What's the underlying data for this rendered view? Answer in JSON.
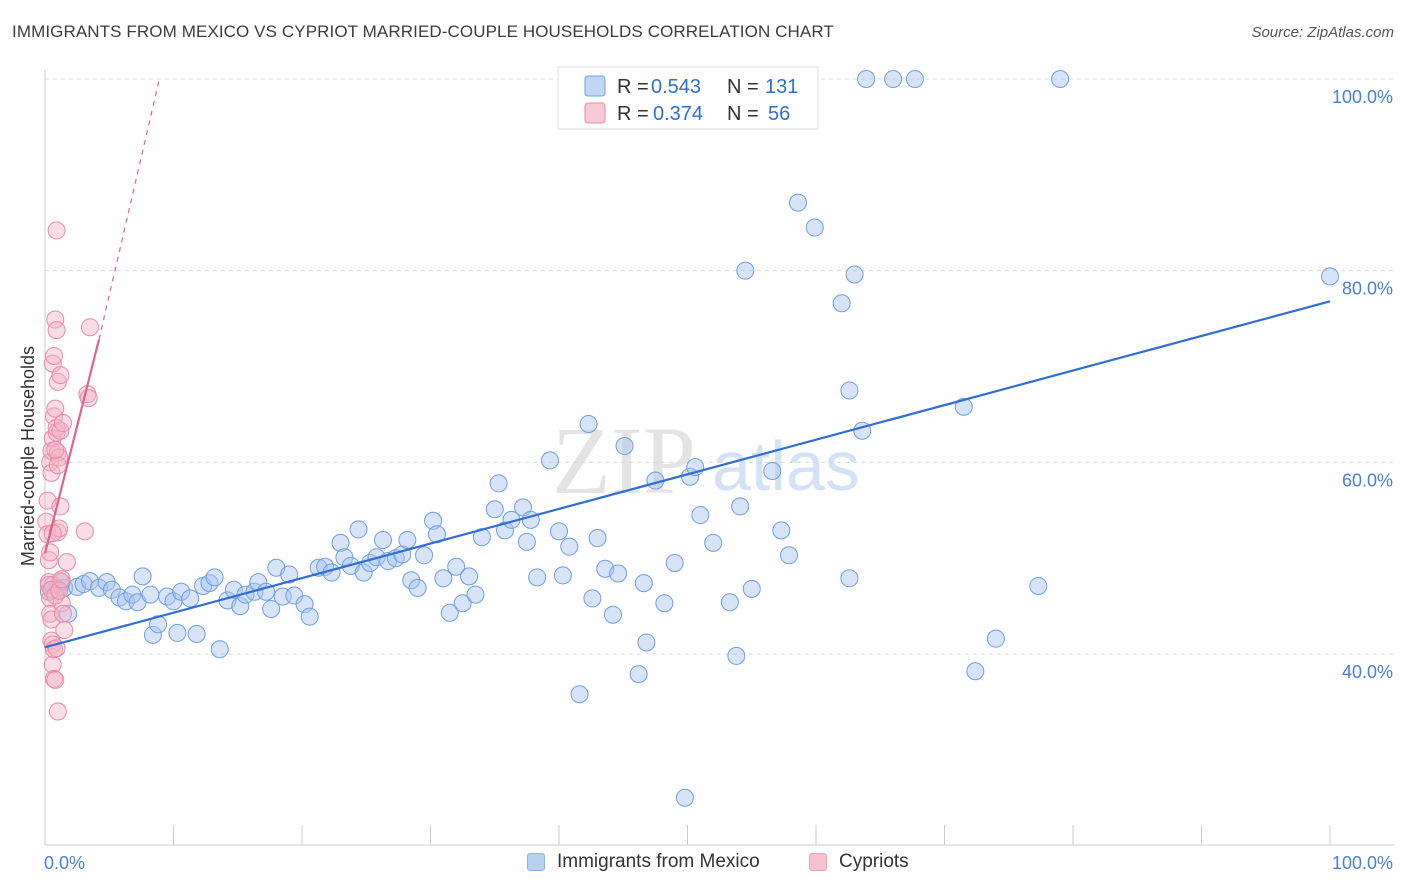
{
  "title": "IMMIGRANTS FROM MEXICO VS CYPRIOT MARRIED-COUPLE HOUSEHOLDS CORRELATION CHART",
  "source": "Source: ZipAtlas.com",
  "watermark": {
    "zip": "ZIP",
    "atlas": "atlas"
  },
  "colors": {
    "blue": "#a7c4ef",
    "blue_stroke": "#6f9ee3",
    "blue_line": "#2f6fd0",
    "pink": "#f5b4c8",
    "pink_stroke": "#ea8aa8",
    "pink_line": "#e0628e",
    "tick_label": "#4a7fd1",
    "grid": "#dadada"
  },
  "legend": {
    "r_label": "R =",
    "n_label": "N =",
    "rows": [
      {
        "r": "0.543",
        "n": "131",
        "series": "blue"
      },
      {
        "r": "0.374",
        "n": "56",
        "series": "pink"
      }
    ]
  },
  "bottom_legend": [
    {
      "label": "Immigrants from Mexico",
      "series": "blue"
    },
    {
      "label": "Cypriots",
      "series": "pink"
    }
  ],
  "chart_data": {
    "type": "scatter",
    "ylabel": "Married-couple Households",
    "xlim": [
      0,
      100
    ],
    "ylim": [
      20,
      102
    ],
    "x_tick_labels": [
      {
        "x": 0,
        "label": "0.0%"
      },
      {
        "x": 100,
        "label": "100.0%"
      }
    ],
    "y_ticks": [
      {
        "y": 40,
        "label": "40.0%"
      },
      {
        "y": 60,
        "label": "60.0%"
      },
      {
        "y": 80,
        "label": "80.0%"
      },
      {
        "y": 100,
        "label": "100.0%"
      }
    ],
    "grid": true,
    "legend_position": "top-center",
    "series": [
      {
        "name": "Immigrants from Mexico",
        "color": "blue",
        "trend": {
          "x": [
            0,
            100
          ],
          "y": [
            40.7,
            76.8
          ],
          "dashed_extension": false
        },
        "points": [
          [
            0.3,
            46.5
          ],
          [
            0.6,
            47.2
          ],
          [
            1.0,
            46.8
          ],
          [
            1.3,
            47.5
          ],
          [
            1.5,
            46.9
          ],
          [
            1.8,
            44.2
          ],
          [
            2.5,
            47.0
          ],
          [
            3.0,
            47.3
          ],
          [
            3.5,
            47.6
          ],
          [
            4.2,
            46.9
          ],
          [
            4.8,
            47.5
          ],
          [
            5.2,
            46.7
          ],
          [
            5.8,
            45.9
          ],
          [
            6.3,
            45.5
          ],
          [
            6.8,
            46.2
          ],
          [
            7.2,
            45.4
          ],
          [
            7.6,
            48.1
          ],
          [
            8.2,
            46.2
          ],
          [
            8.4,
            42.0
          ],
          [
            8.8,
            43.1
          ],
          [
            9.5,
            46.0
          ],
          [
            10.0,
            45.5
          ],
          [
            10.3,
            42.2
          ],
          [
            10.6,
            46.5
          ],
          [
            11.3,
            45.8
          ],
          [
            11.8,
            42.1
          ],
          [
            12.3,
            47.1
          ],
          [
            12.8,
            47.4
          ],
          [
            13.2,
            48.0
          ],
          [
            13.6,
            40.5
          ],
          [
            14.2,
            45.6
          ],
          [
            14.7,
            46.7
          ],
          [
            15.2,
            45.0
          ],
          [
            15.6,
            46.2
          ],
          [
            16.3,
            46.5
          ],
          [
            16.6,
            47.5
          ],
          [
            17.2,
            46.5
          ],
          [
            17.6,
            44.7
          ],
          [
            18.0,
            49.0
          ],
          [
            18.5,
            46.0
          ],
          [
            19.0,
            48.3
          ],
          [
            19.4,
            46.1
          ],
          [
            20.2,
            45.2
          ],
          [
            20.6,
            43.9
          ],
          [
            21.3,
            49.0
          ],
          [
            21.8,
            49.1
          ],
          [
            22.3,
            48.5
          ],
          [
            23.0,
            51.6
          ],
          [
            23.3,
            50.1
          ],
          [
            23.8,
            49.2
          ],
          [
            24.4,
            53.0
          ],
          [
            24.8,
            48.5
          ],
          [
            25.3,
            49.5
          ],
          [
            25.8,
            50.1
          ],
          [
            26.3,
            51.9
          ],
          [
            26.7,
            49.7
          ],
          [
            27.3,
            50.0
          ],
          [
            27.8,
            50.4
          ],
          [
            28.2,
            51.9
          ],
          [
            28.5,
            47.7
          ],
          [
            29.0,
            46.9
          ],
          [
            29.5,
            50.3
          ],
          [
            30.2,
            53.9
          ],
          [
            30.5,
            52.5
          ],
          [
            31.0,
            47.9
          ],
          [
            31.5,
            44.3
          ],
          [
            32.0,
            49.1
          ],
          [
            32.5,
            45.3
          ],
          [
            33.0,
            48.1
          ],
          [
            33.5,
            46.2
          ],
          [
            34.0,
            52.2
          ],
          [
            35.0,
            55.1
          ],
          [
            35.3,
            57.8
          ],
          [
            35.8,
            52.9
          ],
          [
            36.3,
            54.0
          ],
          [
            37.2,
            55.3
          ],
          [
            37.5,
            51.7
          ],
          [
            37.8,
            54.0
          ],
          [
            38.3,
            48.0
          ],
          [
            39.3,
            60.2
          ],
          [
            40.0,
            52.8
          ],
          [
            40.3,
            48.2
          ],
          [
            40.8,
            51.2
          ],
          [
            41.6,
            35.8
          ],
          [
            42.3,
            64.0
          ],
          [
            42.6,
            45.8
          ],
          [
            43.0,
            52.1
          ],
          [
            43.6,
            48.9
          ],
          [
            44.2,
            44.1
          ],
          [
            44.6,
            48.4
          ],
          [
            45.1,
            61.7
          ],
          [
            46.2,
            37.9
          ],
          [
            46.6,
            47.4
          ],
          [
            46.8,
            41.2
          ],
          [
            47.5,
            58.1
          ],
          [
            48.2,
            45.3
          ],
          [
            49.0,
            49.5
          ],
          [
            49.8,
            25.0
          ],
          [
            50.2,
            58.5
          ],
          [
            50.6,
            59.5
          ],
          [
            51.0,
            54.5
          ],
          [
            52.0,
            51.6
          ],
          [
            53.3,
            45.4
          ],
          [
            53.8,
            39.8
          ],
          [
            54.1,
            55.4
          ],
          [
            54.5,
            80.0
          ],
          [
            55.0,
            46.8
          ],
          [
            56.6,
            59.1
          ],
          [
            57.3,
            52.9
          ],
          [
            57.9,
            50.3
          ],
          [
            58.6,
            87.1
          ],
          [
            59.9,
            84.5
          ],
          [
            62.0,
            76.6
          ],
          [
            62.6,
            47.9
          ],
          [
            62.6,
            67.5
          ],
          [
            63.0,
            79.6
          ],
          [
            63.6,
            63.3
          ],
          [
            63.9,
            100.0
          ],
          [
            66.0,
            100.0
          ],
          [
            67.7,
            100.0
          ],
          [
            71.5,
            65.8
          ],
          [
            72.4,
            38.2
          ],
          [
            74.0,
            41.6
          ],
          [
            77.3,
            47.1
          ],
          [
            79.0,
            100.0
          ],
          [
            100.0,
            79.4
          ],
          [
            55.5,
            100.0
          ]
        ]
      },
      {
        "name": "Cypriots",
        "color": "pink",
        "trend": {
          "x": [
            0,
            4.2
          ],
          "y": [
            50.5,
            72.8
          ],
          "dashed_extension": true,
          "dashed_to": {
            "x": 8.9,
            "y": 100
          }
        },
        "points": [
          [
            0.1,
            53.8
          ],
          [
            0.2,
            52.5
          ],
          [
            0.3,
            49.8
          ],
          [
            0.3,
            47.5
          ],
          [
            0.4,
            45.8
          ],
          [
            0.4,
            44.2
          ],
          [
            0.5,
            43.6
          ],
          [
            0.5,
            41.4
          ],
          [
            0.6,
            41.0
          ],
          [
            0.6,
            38.9
          ],
          [
            0.7,
            37.4
          ],
          [
            0.8,
            37.3
          ],
          [
            0.4,
            60.0
          ],
          [
            0.5,
            61.2
          ],
          [
            0.6,
            62.5
          ],
          [
            0.7,
            64.8
          ],
          [
            0.8,
            65.6
          ],
          [
            0.9,
            63.1
          ],
          [
            1.0,
            61.0
          ],
          [
            1.1,
            60.5
          ],
          [
            0.6,
            70.3
          ],
          [
            0.7,
            71.1
          ],
          [
            0.8,
            74.9
          ],
          [
            0.9,
            73.8
          ],
          [
            1.0,
            68.4
          ],
          [
            1.2,
            69.1
          ],
          [
            0.9,
            84.2
          ],
          [
            1.0,
            52.7
          ],
          [
            1.1,
            53.1
          ],
          [
            1.2,
            47.6
          ],
          [
            1.3,
            45.3
          ],
          [
            1.4,
            44.2
          ],
          [
            1.5,
            42.5
          ],
          [
            0.7,
            40.5
          ],
          [
            0.9,
            40.6
          ],
          [
            1.0,
            34.0
          ],
          [
            1.7,
            49.6
          ],
          [
            0.3,
            47.2
          ],
          [
            0.5,
            46.7
          ],
          [
            0.8,
            46.1
          ],
          [
            1.1,
            46.6
          ],
          [
            1.3,
            47.8
          ],
          [
            0.4,
            50.6
          ],
          [
            0.6,
            52.6
          ],
          [
            0.2,
            56.0
          ],
          [
            0.9,
            63.6
          ],
          [
            1.2,
            63.3
          ],
          [
            1.4,
            64.1
          ],
          [
            3.1,
            52.8
          ],
          [
            3.3,
            67.1
          ],
          [
            3.4,
            66.7
          ],
          [
            3.5,
            74.1
          ],
          [
            0.5,
            58.9
          ],
          [
            1.0,
            59.7
          ],
          [
            0.8,
            61.3
          ],
          [
            1.2,
            55.4
          ]
        ]
      }
    ]
  }
}
